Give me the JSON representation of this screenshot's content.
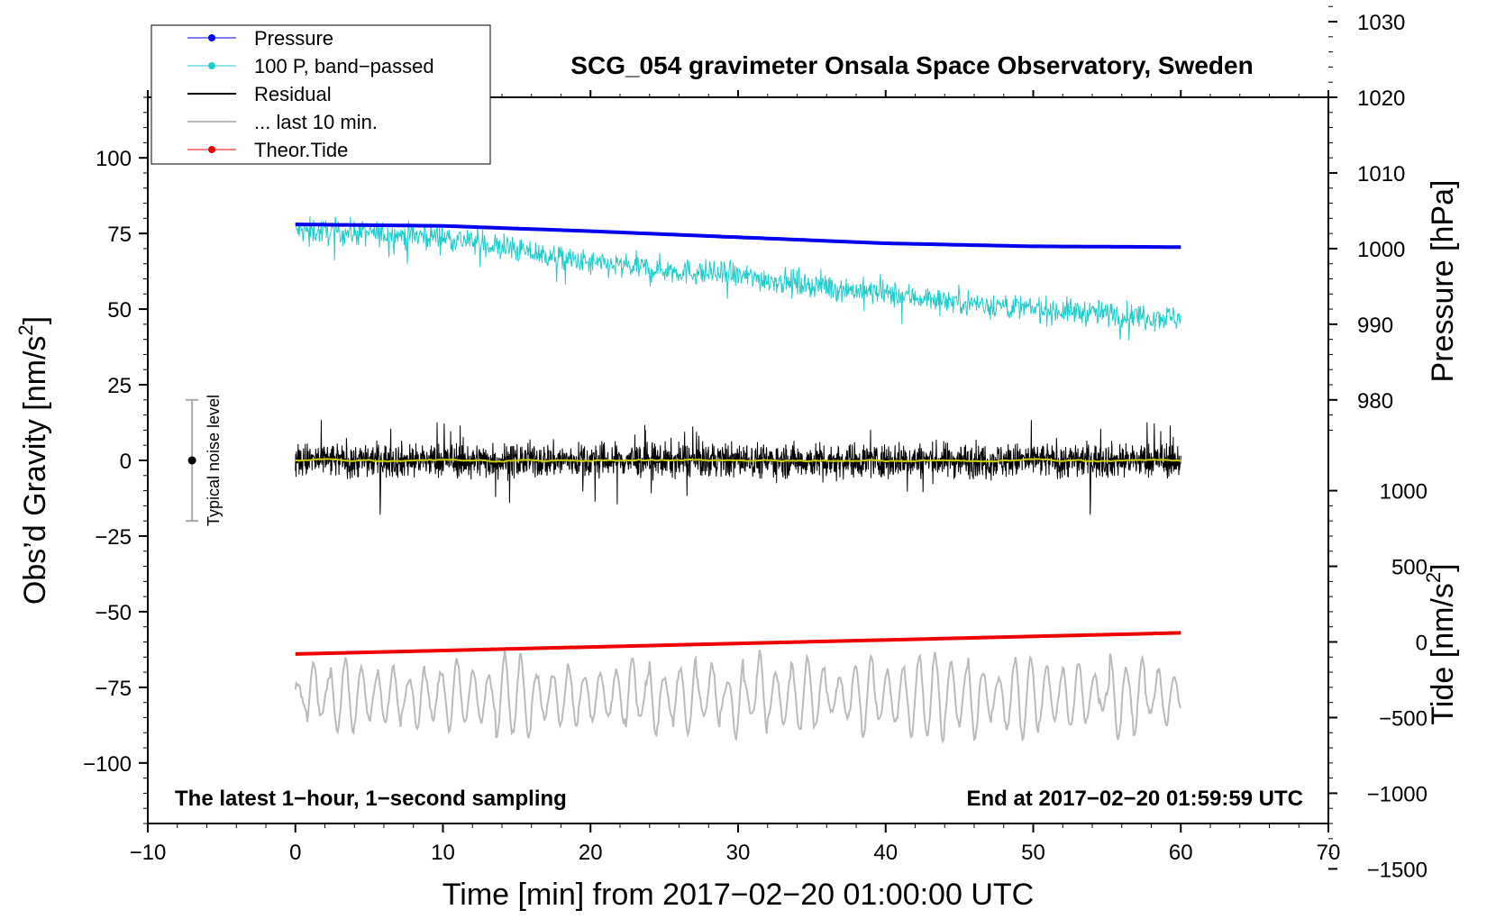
{
  "chart_data": {
    "type": "line",
    "title": "SCG_054 gravimeter Onsala Space Observatory, Sweden",
    "xlabel": "Time [min] from 2017−02−20 01:00:00 UTC",
    "ylabel_left_main": "Obs’d Gravity [nm/s",
    "ylabel_left_sup": "2",
    "ylabel_left_close": "]",
    "ylabel_right_pressure": "Pressure [hPa]",
    "ylabel_right_tide_main": "Tide [nm/s",
    "ylabel_right_tide_sup": "2",
    "ylabel_right_tide_close": "]",
    "xlim": [
      -10,
      70
    ],
    "ylim_left": [
      -120,
      120
    ],
    "pressure_axis": {
      "ticks": [
        980,
        990,
        1000,
        1010,
        1020,
        1030
      ],
      "left_equiv_980": 20,
      "left_per_hpa": 2.5
    },
    "tide_axis": {
      "ticks": [
        -1500,
        -1000,
        -500,
        0,
        500,
        1000
      ],
      "left_equiv_0": -60,
      "left_per_unit": 0.05
    },
    "x_ticks": [
      -10,
      0,
      10,
      20,
      30,
      40,
      50,
      60,
      70
    ],
    "x_tick_labels": [
      "−10",
      "0",
      "10",
      "20",
      "30",
      "40",
      "50",
      "60",
      "70"
    ],
    "y_ticks": [
      -100,
      -75,
      -50,
      -25,
      0,
      25,
      50,
      75,
      100
    ],
    "y_tick_labels": [
      "−100",
      "−75",
      "−50",
      "−25",
      "0",
      "25",
      "50",
      "75",
      "100"
    ],
    "pressure_tick_labels": [
      "980",
      "990",
      "1000",
      "1010",
      "1020",
      "1030"
    ],
    "tide_tick_labels": [
      "−1500",
      "−1000",
      "−500",
      "0",
      "500",
      "1000"
    ],
    "series": [
      {
        "name": "Pressure",
        "color": "#0000ee",
        "axis": "pressure",
        "x": [
          0,
          10,
          20,
          30,
          40,
          50,
          60
        ],
        "values": [
          1003.2,
          1003.0,
          1002.3,
          1001.5,
          1000.7,
          1000.3,
          1000.2
        ]
      },
      {
        "name": "100 P, band−passed",
        "color": "#22cccc",
        "axis": "left",
        "x": [
          0,
          10,
          20,
          30,
          40,
          50,
          60
        ],
        "values": [
          76,
          74,
          65,
          61,
          55,
          50,
          47
        ],
        "noise_amplitude": 8
      },
      {
        "name": "Residual",
        "color": "#000000",
        "axis": "left",
        "x": [
          0,
          60
        ],
        "values": [
          0,
          0
        ],
        "noise_amplitude": 13
      },
      {
        "name": "... last 10 min.",
        "color": "#bbbbbb",
        "axis": "left",
        "x": [
          0,
          60
        ],
        "values": [
          -78,
          -78
        ],
        "noise_amplitude": 12
      },
      {
        "name": "Theor.Tide",
        "color": "#ee0000",
        "axis": "tide",
        "x": [
          0,
          60
        ],
        "values": [
          -80,
          60
        ]
      }
    ],
    "smoothed_residual_color": "#cccc00",
    "noise_level": {
      "label": "Typical noise level",
      "x": -7,
      "center": 0,
      "low": -20,
      "high": 20
    },
    "footnote_left": "The latest 1−hour, 1−second sampling",
    "footnote_right": "End at 2017−02−20 01:59:59 UTC"
  }
}
